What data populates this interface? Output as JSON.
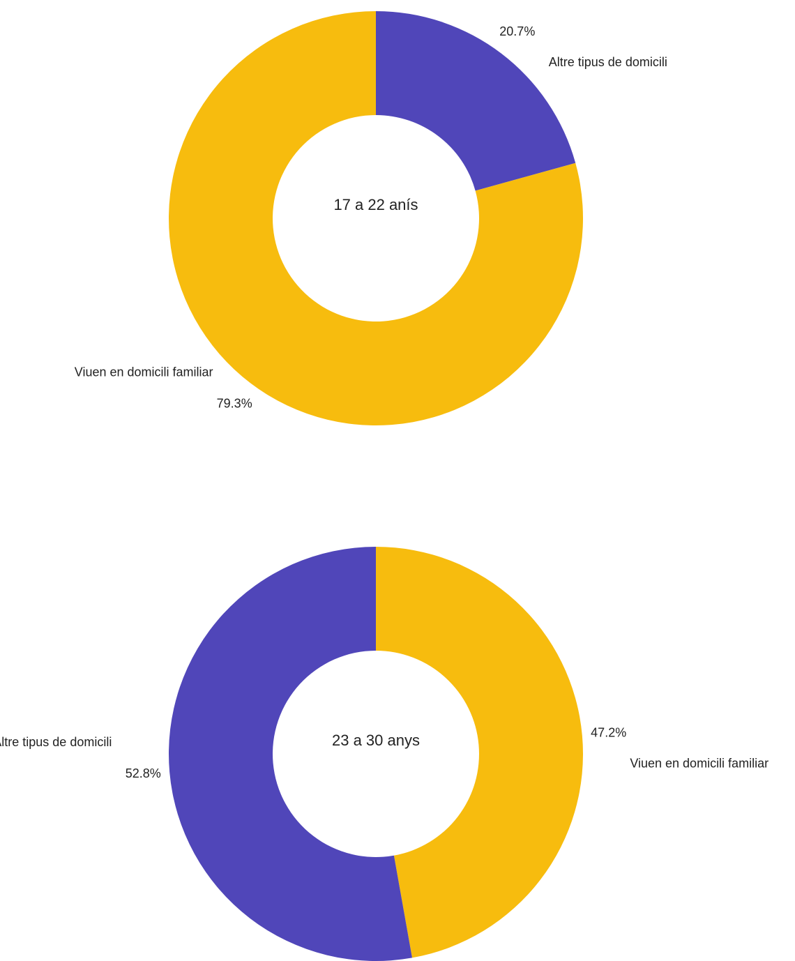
{
  "chart_data": [
    {
      "type": "pie",
      "donut": true,
      "title": "17 a 22 anís",
      "categories": [
        "Altre tipus de domicili",
        "Viuen en domicili familiar"
      ],
      "values": [
        20.7,
        79.3
      ],
      "value_labels": [
        "20.7%",
        "79.3%"
      ],
      "colors": [
        "#5046b9",
        "#f7bc0e"
      ]
    },
    {
      "type": "pie",
      "donut": true,
      "title": "23 a 30 anys",
      "categories": [
        "Viuen en domicili familiar",
        "Altre tipus de domicili"
      ],
      "values": [
        47.2,
        52.8
      ],
      "value_labels": [
        "47.2%",
        "52.8%"
      ],
      "colors": [
        "#f7bc0e",
        "#5046b9"
      ]
    }
  ]
}
